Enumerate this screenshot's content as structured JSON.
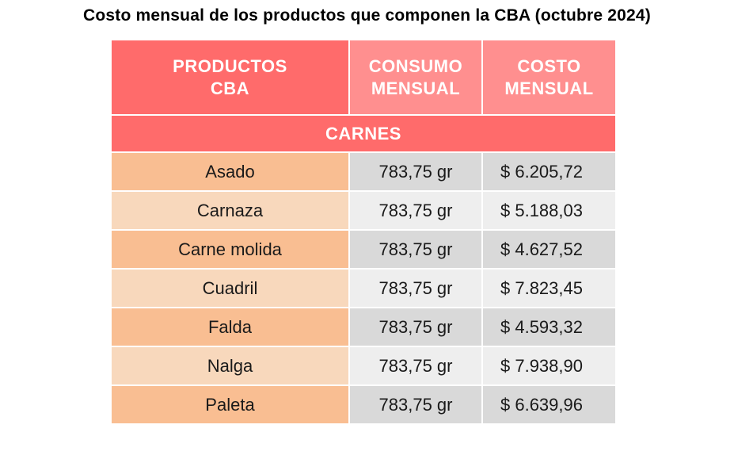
{
  "title": "Costo mensual de los productos que componen la CBA (octubre 2024)",
  "table": {
    "headers": {
      "product": [
        "PRODUCTOS",
        "CBA"
      ],
      "consumption": [
        "CONSUMO",
        "MENSUAL"
      ],
      "cost": [
        "COSTO",
        "MENSUAL"
      ]
    },
    "section": "CARNES",
    "rows": [
      {
        "product": "Asado",
        "consumption": "783,75 gr",
        "cost": "$ 6.205,72"
      },
      {
        "product": "Carnaza",
        "consumption": "783,75 gr",
        "cost": "$ 5.188,03"
      },
      {
        "product": "Carne molida",
        "consumption": "783,75 gr",
        "cost": "$ 4.627,52"
      },
      {
        "product": "Cuadril",
        "consumption": "783,75 gr",
        "cost": "$ 7.823,45"
      },
      {
        "product": "Falda",
        "consumption": "783,75 gr",
        "cost": "$ 4.593,32"
      },
      {
        "product": "Nalga",
        "consumption": "783,75 gr",
        "cost": "$ 7.938,90"
      },
      {
        "product": "Paleta",
        "consumption": "783,75 gr",
        "cost": "$ 6.639,96"
      }
    ]
  },
  "colors": {
    "header_primary": "#ff6b6b",
    "header_secondary": "#ff8f8f",
    "row_odd_product": "#f9be92",
    "row_even_product": "#f8d8bc",
    "row_odd_value": "#d9d9d9",
    "row_even_value": "#eeeeee"
  }
}
